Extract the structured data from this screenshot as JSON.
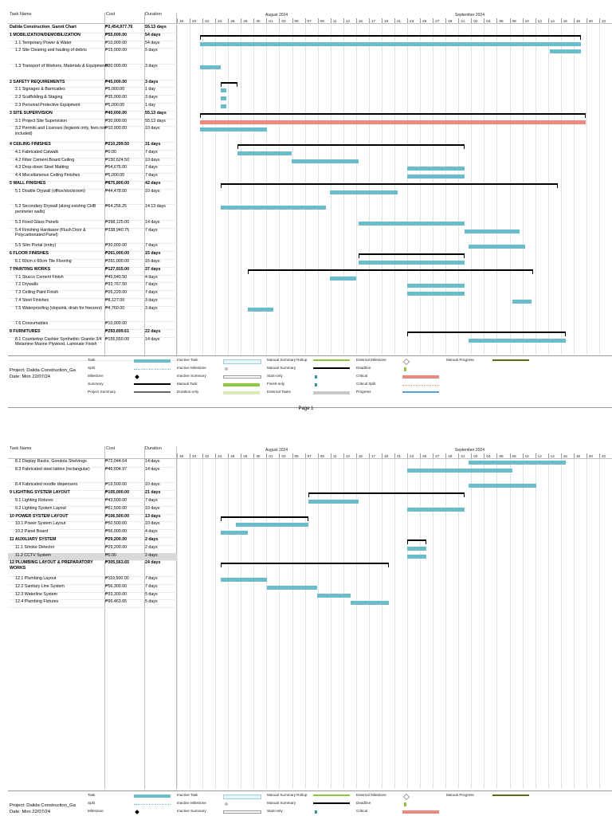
{
  "header": {
    "task_name": "Task Name",
    "cost": "Cost",
    "duration": "Duration"
  },
  "timeline": {
    "aug_label": "August 2024",
    "sep_label": "September 2024",
    "days": [
      "18",
      "20",
      "22",
      "24",
      "26",
      "28",
      "30",
      "01",
      "03",
      "05",
      "07",
      "09",
      "11",
      "13",
      "15",
      "17",
      "19",
      "21",
      "23",
      "25",
      "27",
      "29",
      "31",
      "02",
      "04",
      "06",
      "08",
      "10",
      "12",
      "14",
      "16",
      "18",
      "20",
      "22"
    ]
  },
  "page1_rows": [
    {
      "name": "Dalida Construction_Gannt Chart",
      "cost": "₱2,454,977.76",
      "duration": "55.13 days",
      "bold": true,
      "lines": 1
    },
    {
      "name": "1 MOBILIZATION/DEMOBILIZATION",
      "cost": "₱55,000.00",
      "duration": "54 days",
      "bold": true,
      "lines": 1
    },
    {
      "name": "1.1 Temporary Power & Water",
      "cost": "₱10,000.00",
      "duration": "54 days",
      "lines": 1
    },
    {
      "name": "1.2 Site Clearing and hauling of debris",
      "cost": "₱15,000.00",
      "duration": "5 days",
      "lines": 2
    },
    {
      "name": "1.3 Transport of Workers, Materials & Equipments",
      "cost": "₱30,000.00",
      "duration": "3 days",
      "lines": 2
    },
    {
      "name": "2 SAFETY REQUIREMENTS",
      "cost": "₱45,000.00",
      "duration": "3 days",
      "bold": true,
      "lines": 1
    },
    {
      "name": "2.1 Signages & Barricades",
      "cost": "₱5,000.00",
      "duration": "1 day",
      "lines": 1
    },
    {
      "name": "2.2 Scaffolding & Staging",
      "cost": "₱35,000.00",
      "duration": "3 days",
      "lines": 1
    },
    {
      "name": "2.3 Personal Protective Equipment",
      "cost": "₱5,000.00",
      "duration": "1 day",
      "lines": 1
    },
    {
      "name": "3 SITE SUPERVISION",
      "cost": "₱40,000.00",
      "duration": "55.13 days",
      "bold": true,
      "lines": 1
    },
    {
      "name": "3.1 Project Site Supervision",
      "cost": "₱30,000.00",
      "duration": "55.13 days",
      "lines": 1
    },
    {
      "name": "3.2 Permits and Licenses (legwork only, fees not included)",
      "cost": "₱10,000.00",
      "duration": "10 days",
      "lines": 2
    },
    {
      "name": "4 CEILING FINISHES",
      "cost": "₱210,299.50",
      "duration": "31 days",
      "bold": true,
      "lines": 1
    },
    {
      "name": "4.1 Fabricated Catwalk",
      "cost": "₱0.00",
      "duration": "7 days",
      "lines": 1
    },
    {
      "name": "4.2 Fiber Cement Board Ceiling",
      "cost": "₱150,624.50",
      "duration": "10 days",
      "lines": 1
    },
    {
      "name": "4.3 Drop-down Steel Matting",
      "cost": "₱54,675.00",
      "duration": "7 days",
      "lines": 1
    },
    {
      "name": "4.4 Miscellaneous Ceiling Finishes",
      "cost": "₱5,000.00",
      "duration": "7 days",
      "lines": 1
    },
    {
      "name": "5 WALL FINISHES",
      "cost": "₱875,800.00",
      "duration": "42 days",
      "bold": true,
      "lines": 1
    },
    {
      "name": "5.1 Double Drywall (office/stockroom)",
      "cost": "₱44,478.00",
      "duration": "10 days",
      "lines": 2
    },
    {
      "name": "5.2 Secondary Drywall (along existing CHB perimeter walls)",
      "cost": "₱64,256.25",
      "duration": "14.13 days",
      "lines": 2
    },
    {
      "name": "5.3 Fixed Glass Panels",
      "cost": "₱398,125.00",
      "duration": "14 days",
      "lines": 1
    },
    {
      "name": "5.4 Finishing Hardware (Flush Door & Polycarbonated Panel)",
      "cost": "₱338,940.75",
      "duration": "7 days",
      "lines": 2
    },
    {
      "name": "5.5 Slim Portal (entry)",
      "cost": "₱30,000.00",
      "duration": "7 days",
      "lines": 1
    },
    {
      "name": "6 FLOOR FINISHES",
      "cost": "₱261,000.00",
      "duration": "15 days",
      "bold": true,
      "lines": 1
    },
    {
      "name": "6.1 60cm x 60cm Tile Flooring",
      "cost": "₱261,000.00",
      "duration": "15 days",
      "lines": 1
    },
    {
      "name": "7 PAINTING WORKS",
      "cost": "₱127,915.00",
      "duration": "37 days",
      "bold": true,
      "lines": 1
    },
    {
      "name": "7.1 Stucco Cement Finish",
      "cost": "₱45,040.50",
      "duration": "4 days",
      "lines": 1
    },
    {
      "name": "7.2 Drywalls",
      "cost": "₱33,767.50",
      "duration": "7 days",
      "lines": 1
    },
    {
      "name": "7.3 Ceiling Paint Finish",
      "cost": "₱26,220.00",
      "duration": "7 days",
      "lines": 1
    },
    {
      "name": "7.4 Steel Finishes",
      "cost": "₱8,127.00",
      "duration": "3 days",
      "lines": 1
    },
    {
      "name": "7.5 Waterproofing (slopsink, drain for freezers)",
      "cost": "₱4,760.00",
      "duration": "3 days",
      "lines": 2
    },
    {
      "name": "7.6 Consumables",
      "cost": "₱10,000.00",
      "duration": "",
      "lines": 1
    },
    {
      "name": "8 FURNITURES",
      "cost": "₱293,699.61",
      "duration": "22 days",
      "bold": true,
      "lines": 1
    },
    {
      "name": "8.1 Countertop Cashier Synthethic Granite 3/4 Melamine Marine Plywood, Laminate Finish",
      "cost": "₱155,550.00",
      "duration": "14 days",
      "lines": 3
    }
  ],
  "page2_rows": [
    {
      "name": "8.2 Display Racks, Gondola Shelvings",
      "cost": "₱72,044.64",
      "duration": "14 days",
      "lines": 1
    },
    {
      "name": "8.3 Fabricated steel tables (rectangular)",
      "cost": "₱46,604.97",
      "duration": "14 days",
      "lines": 2
    },
    {
      "name": "8.4 Fabricated noodle dispensers",
      "cost": "₱19,500.00",
      "duration": "10 days",
      "lines": 1
    },
    {
      "name": "9 LIGHTING SYSTEM LAYOUT",
      "cost": "₱105,000.00",
      "duration": "21 days",
      "bold": true,
      "lines": 1
    },
    {
      "name": "9.1 Lighting Fixtures",
      "cost": "₱43,500.00",
      "duration": "7 days",
      "lines": 1
    },
    {
      "name": "9.2 Lighting System Layout",
      "cost": "₱61,500.00",
      "duration": "10 days",
      "lines": 1
    },
    {
      "name": "10 POWER SYSTEM LAYOUT",
      "cost": "₱106,500.00",
      "duration": "13 days",
      "bold": true,
      "lines": 1
    },
    {
      "name": "10.1 Power System Layout",
      "cost": "₱50,500.00",
      "duration": "10 days",
      "lines": 1
    },
    {
      "name": "10.2 Panel Board",
      "cost": "₱56,000.00",
      "duration": "4 days",
      "lines": 1
    },
    {
      "name": "11 AUXILIARY SYSTEM",
      "cost": "₱29,200.00",
      "duration": "2 days",
      "bold": true,
      "lines": 1
    },
    {
      "name": "11.1 Smoke Detector",
      "cost": "₱29,200.00",
      "duration": "2 days",
      "lines": 1
    },
    {
      "name": "11.2 CCTV System",
      "cost": "₱0.00",
      "duration": "2 days",
      "lines": 1,
      "selected": true
    },
    {
      "name": "12 PLUMBING LAYOUT & PREPARATORY WORKS",
      "cost": "₱305,563.65",
      "duration": "24 days",
      "bold": true,
      "lines": 2
    },
    {
      "name": "12.1 Plumbing Layout",
      "cost": "₱119,500.00",
      "duration": "7 days",
      "lines": 1
    },
    {
      "name": "12.2 Sanitary Line System",
      "cost": "₱56,300.00",
      "duration": "7 days",
      "lines": 1
    },
    {
      "name": "12.3 Waterline System",
      "cost": "₱33,300.00",
      "duration": "5 days",
      "lines": 1
    },
    {
      "name": "12.4 Plumbing Fixtures",
      "cost": "₱96,463.65",
      "duration": "5 days",
      "lines": 1
    }
  ],
  "legend": {
    "project": "Project: Dalida Construction_Ga",
    "date": "Date: Mon 22/07/24",
    "col1": [
      "Task",
      "Split",
      "Milestone",
      "Summary",
      "Project Summary"
    ],
    "col2": [
      "Inactive Task",
      "Inactive Milestone",
      "Inactive Summary",
      "Manual Task",
      "Duration-only"
    ],
    "col3": [
      "Manual Summary Rollup",
      "Manual Summary",
      "Start-only",
      "Finish-only",
      "External Tasks"
    ],
    "col4": [
      "External Milestone",
      "Deadline",
      "Critical",
      "Critical Split",
      "Progress"
    ],
    "col5": [
      "Manual Progress"
    ]
  },
  "footer": {
    "page1": "Page 1"
  },
  "colors": {
    "task": "#6bbccb",
    "critical": "#f0877f",
    "manual_task": "#8dc63f",
    "progress": "#5b9bd5",
    "manual_progress": "#5a6a1a"
  },
  "bars_page1": [
    {
      "row": 1,
      "type": "summary",
      "start": 0.054,
      "end": 0.928
    },
    {
      "row": 2,
      "type": "task",
      "start": 0.054,
      "end": 0.928
    },
    {
      "row": 3,
      "type": "task",
      "start": 0.857,
      "end": 0.928
    },
    {
      "row": 4,
      "type": "task",
      "start": 0.054,
      "end": 0.1
    },
    {
      "row": 5,
      "type": "summary",
      "start": 0.1,
      "end": 0.139
    },
    {
      "row": 6,
      "type": "task",
      "start": 0.1,
      "end": 0.113
    },
    {
      "row": 7,
      "type": "task",
      "start": 0.1,
      "end": 0.114
    },
    {
      "row": 8,
      "type": "task",
      "start": 0.1,
      "end": 0.113
    },
    {
      "row": 9,
      "type": "summary",
      "start": 0.054,
      "end": 0.94
    },
    {
      "row": 10,
      "type": "critical",
      "start": 0.054,
      "end": 0.94
    },
    {
      "row": 11,
      "type": "task",
      "start": 0.054,
      "end": 0.207
    },
    {
      "row": 12,
      "type": "summary",
      "start": 0.139,
      "end": 0.661
    },
    {
      "row": 13,
      "type": "task",
      "start": 0.139,
      "end": 0.263
    },
    {
      "row": 14,
      "type": "task",
      "start": 0.263,
      "end": 0.418
    },
    {
      "row": 15,
      "type": "task",
      "start": 0.53,
      "end": 0.661
    },
    {
      "row": 16,
      "type": "task",
      "start": 0.53,
      "end": 0.661
    },
    {
      "row": 17,
      "type": "summary",
      "start": 0.1,
      "end": 0.876
    },
    {
      "row": 18,
      "type": "task",
      "start": 0.352,
      "end": 0.507
    },
    {
      "row": 19,
      "type": "task",
      "start": 0.1,
      "end": 0.343
    },
    {
      "row": 20,
      "type": "task",
      "start": 0.418,
      "end": 0.661
    },
    {
      "row": 21,
      "type": "task",
      "start": 0.661,
      "end": 0.788
    },
    {
      "row": 22,
      "type": "task",
      "start": 0.67,
      "end": 0.8
    },
    {
      "row": 23,
      "type": "summary",
      "start": 0.418,
      "end": 0.661
    },
    {
      "row": 24,
      "type": "task",
      "start": 0.418,
      "end": 0.661
    },
    {
      "row": 25,
      "type": "summary",
      "start": 0.163,
      "end": 0.818
    },
    {
      "row": 26,
      "type": "task",
      "start": 0.352,
      "end": 0.412
    },
    {
      "row": 27,
      "type": "task",
      "start": 0.53,
      "end": 0.661
    },
    {
      "row": 28,
      "type": "task",
      "start": 0.53,
      "end": 0.661
    },
    {
      "row": 29,
      "type": "task",
      "start": 0.771,
      "end": 0.815
    },
    {
      "row": 30,
      "type": "task",
      "start": 0.163,
      "end": 0.221
    },
    {
      "row": 32,
      "type": "summary",
      "start": 0.53,
      "end": 0.894
    },
    {
      "row": 33,
      "type": "task",
      "start": 0.67,
      "end": 0.894
    }
  ],
  "bars_page2": [
    {
      "row": 0,
      "type": "task",
      "start": 0.67,
      "end": 0.894
    },
    {
      "row": 1,
      "type": "task",
      "start": 0.53,
      "end": 0.771
    },
    {
      "row": 2,
      "type": "task",
      "start": 0.67,
      "end": 0.826
    },
    {
      "row": 3,
      "type": "summary",
      "start": 0.302,
      "end": 0.661
    },
    {
      "row": 4,
      "type": "task",
      "start": 0.302,
      "end": 0.418
    },
    {
      "row": 5,
      "type": "task",
      "start": 0.53,
      "end": 0.661
    },
    {
      "row": 6,
      "type": "summary",
      "start": 0.1,
      "end": 0.302
    },
    {
      "row": 7,
      "type": "task",
      "start": 0.135,
      "end": 0.302
    },
    {
      "row": 8,
      "type": "task",
      "start": 0.1,
      "end": 0.163
    },
    {
      "row": 9,
      "type": "summary",
      "start": 0.53,
      "end": 0.573
    },
    {
      "row": 10,
      "type": "task",
      "start": 0.53,
      "end": 0.573
    },
    {
      "row": 11,
      "type": "task",
      "start": 0.53,
      "end": 0.573
    },
    {
      "row": 12,
      "type": "summary",
      "start": 0.1,
      "end": 0.488
    },
    {
      "row": 13,
      "type": "task",
      "start": 0.1,
      "end": 0.207
    },
    {
      "row": 14,
      "type": "task",
      "start": 0.207,
      "end": 0.322
    },
    {
      "row": 15,
      "type": "task",
      "start": 0.322,
      "end": 0.4
    },
    {
      "row": 16,
      "type": "task",
      "start": 0.4,
      "end": 0.488
    }
  ]
}
